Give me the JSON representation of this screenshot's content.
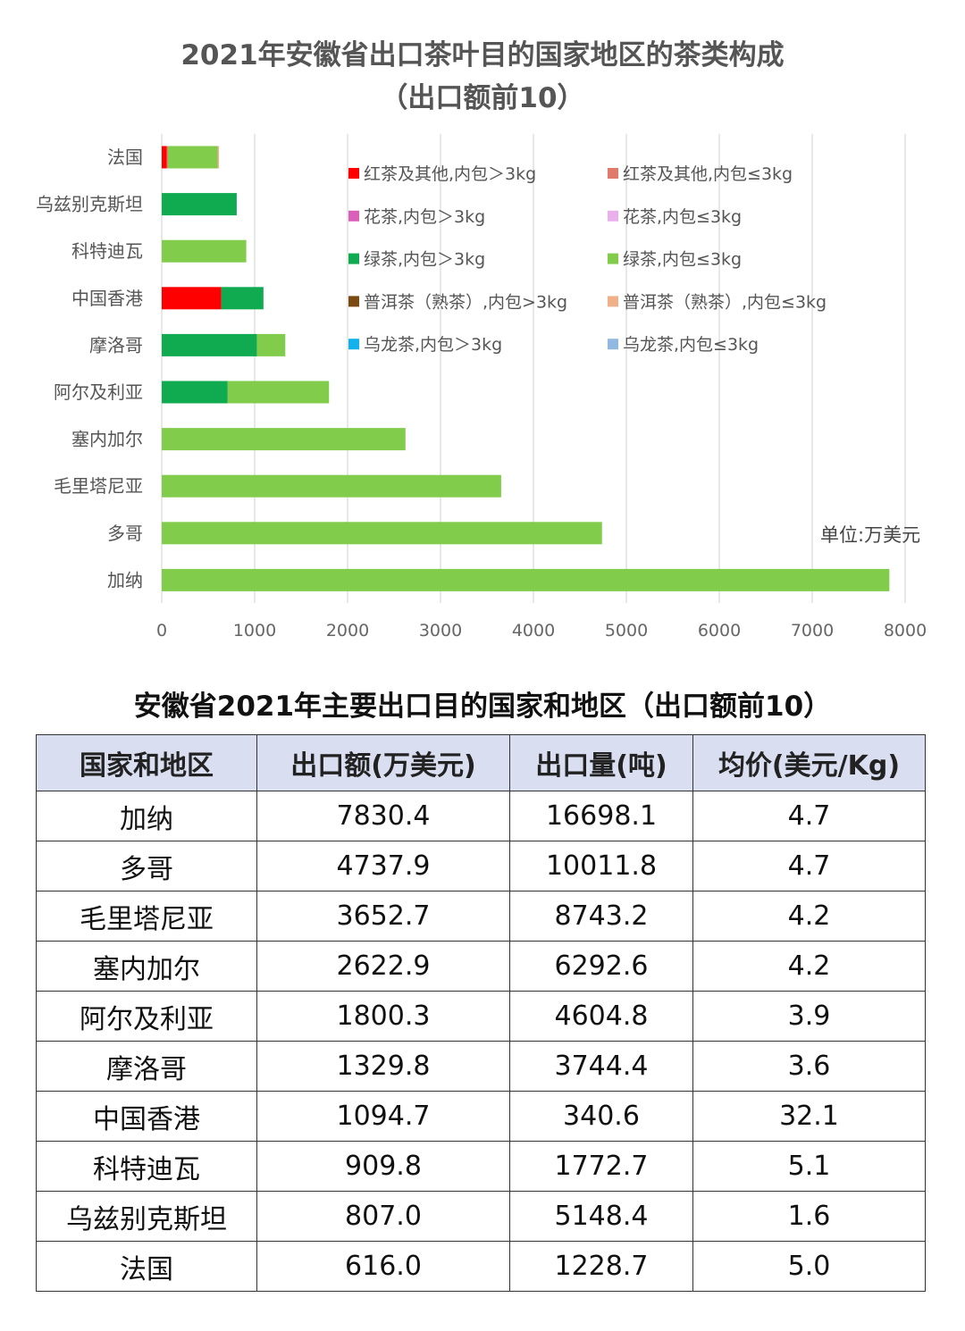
{
  "chart_data": {
    "type": "bar",
    "orientation": "horizontal",
    "stacked": true,
    "title_line1": "2021年安徽省出口茶叶目的国家地区的茶类构成",
    "title_line2": "（出口额前10）",
    "unit_label": "单位:万美元",
    "categories": [
      "法国",
      "乌兹别克斯坦",
      "科特迪瓦",
      "中国香港",
      "摩洛哥",
      "阿尔及利亚",
      "塞内加尔",
      "毛里塔尼亚",
      "多哥",
      "加纳"
    ],
    "xlim": [
      0,
      8000
    ],
    "x_ticks": [
      "0",
      "1000",
      "2000",
      "3000",
      "4000",
      "5000",
      "6000",
      "7000",
      "8000"
    ],
    "grid": "vertical",
    "legend_position": "upper-right",
    "series": [
      {
        "name": "红茶及其他,内包＞3kg",
        "color": "#ff0000",
        "values": [
          55,
          0,
          0,
          640,
          0,
          0,
          0,
          0,
          0,
          0
        ]
      },
      {
        "name": "红茶及其他,内包≤3kg",
        "color": "#e07a6a",
        "values": [
          12,
          0,
          0,
          0,
          0,
          0,
          0,
          0,
          0,
          0
        ]
      },
      {
        "name": "花茶,内包＞3kg",
        "color": "#d860b8",
        "values": [
          0,
          0,
          0,
          0,
          0,
          0,
          0,
          0,
          0,
          0
        ]
      },
      {
        "name": "花茶,内包≤3kg",
        "color": "#eab0ec",
        "values": [
          0,
          0,
          0,
          0,
          0,
          0,
          0,
          0,
          0,
          0
        ]
      },
      {
        "name": "绿茶,内包＞3kg",
        "color": "#10ab50",
        "values": [
          0,
          807.0,
          0,
          454.7,
          1025,
          710,
          0,
          0,
          0,
          0
        ]
      },
      {
        "name": "绿茶,内包≤3kg",
        "color": "#82cc4c",
        "values": [
          534,
          0,
          909.8,
          0,
          304.8,
          1090.3,
          2622.9,
          3652.7,
          4737.9,
          7830.4
        ]
      },
      {
        "name": "普洱茶（熟茶）,内包>3kg",
        "color": "#7a4a12",
        "values": [
          0,
          0,
          0,
          0,
          0,
          0,
          0,
          0,
          0,
          0
        ]
      },
      {
        "name": "普洱茶（熟茶）,内包≤3kg",
        "color": "#f0b088",
        "values": [
          15,
          0,
          0,
          0,
          0,
          0,
          0,
          0,
          0,
          0
        ]
      },
      {
        "name": "乌龙茶,内包＞3kg",
        "color": "#12b0ec",
        "values": [
          0,
          0,
          0,
          0,
          0,
          0,
          0,
          0,
          0,
          0
        ]
      },
      {
        "name": "乌龙茶,内包≤3kg",
        "color": "#90b8e0",
        "values": [
          0,
          0,
          0,
          0,
          0,
          0,
          0,
          0,
          0,
          0
        ]
      }
    ]
  },
  "table": {
    "title": "安徽省2021年主要出口目的国家和地区（出口额前10）",
    "headers": [
      "国家和地区",
      "出口额(万美元)",
      "出口量(吨)",
      "均价(美元/Kg)"
    ],
    "rows": [
      [
        "加纳",
        "7830.4",
        "16698.1",
        "4.7"
      ],
      [
        "多哥",
        "4737.9",
        "10011.8",
        "4.7"
      ],
      [
        "毛里塔尼亚",
        "3652.7",
        "8743.2",
        "4.2"
      ],
      [
        "塞内加尔",
        "2622.9",
        "6292.6",
        "4.2"
      ],
      [
        "阿尔及利亚",
        "1800.3",
        "4604.8",
        "3.9"
      ],
      [
        "摩洛哥",
        "1329.8",
        "3744.4",
        "3.6"
      ],
      [
        "中国香港",
        "1094.7",
        "340.6",
        "32.1"
      ],
      [
        "科特迪瓦",
        "909.8",
        "1772.7",
        "5.1"
      ],
      [
        "乌兹别克斯坦",
        "807.0",
        "5148.4",
        "1.6"
      ],
      [
        "法国",
        "616.0",
        "1228.7",
        "5.0"
      ]
    ]
  }
}
